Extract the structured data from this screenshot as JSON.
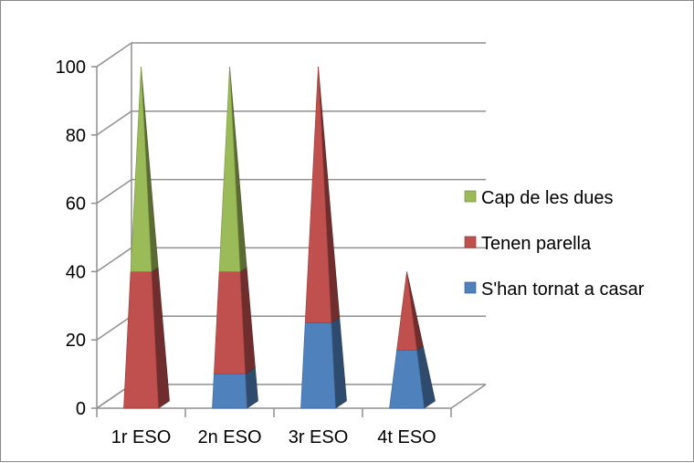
{
  "chart_data": {
    "type": "bar",
    "shape": "pyramid",
    "stacked": true,
    "three_d": true,
    "categories": [
      "1r ESO",
      "2n ESO",
      "3r ESO",
      "4t ESO"
    ],
    "series": [
      {
        "name": "S'han tornat a casar",
        "values": [
          0,
          10,
          25,
          17
        ],
        "color": "#4f81bd"
      },
      {
        "name": "Tenen parella",
        "values": [
          40,
          30,
          75,
          23
        ],
        "color": "#c0504d"
      },
      {
        "name": "Cap de les dues",
        "values": [
          60,
          60,
          0,
          0
        ],
        "color": "#9bbb59"
      }
    ],
    "y_ticks": [
      "0",
      "20",
      "40",
      "60",
      "80",
      "100"
    ],
    "ylim": [
      0,
      100
    ],
    "grid": true,
    "legend": "right",
    "title": "",
    "xlabel": "",
    "ylabel": ""
  }
}
